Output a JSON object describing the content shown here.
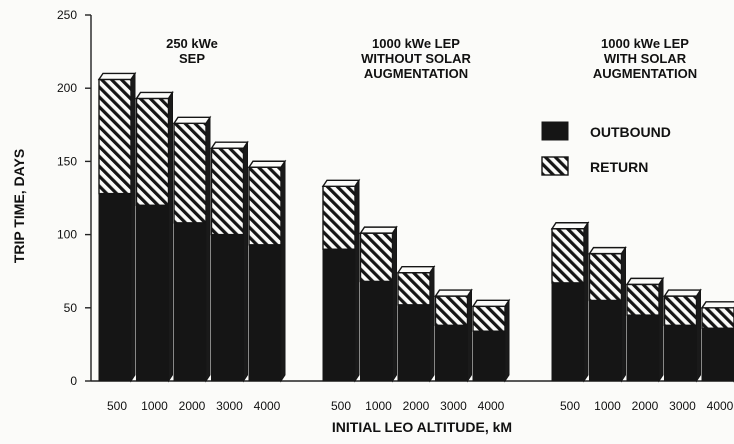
{
  "chart_data": {
    "type": "bar",
    "stacked": true,
    "three_d": true,
    "ylabel": "TRIP TIME, DAYS",
    "xlabel": "INITIAL LEO ALTITUDE, kM",
    "ylim": [
      0,
      250
    ],
    "yticks": [
      "0",
      "50",
      "100",
      "150",
      "200",
      "250"
    ],
    "categories": [
      "500",
      "1000",
      "2000",
      "3000",
      "4000"
    ],
    "legend": {
      "placement": "right",
      "outbound": "OUTBOUND",
      "return": "RETURN"
    },
    "groups": [
      {
        "title_lines": [
          "250 kWe",
          "SEP"
        ],
        "outbound": [
          128,
          120,
          108,
          100,
          93
        ],
        "total": [
          206,
          193,
          176,
          159,
          146
        ]
      },
      {
        "title_lines": [
          "1000 kWe LEP",
          "WITHOUT SOLAR",
          "AUGMENTATION"
        ],
        "outbound": [
          90,
          68,
          52,
          38,
          34
        ],
        "total": [
          133,
          101,
          74,
          58,
          51
        ]
      },
      {
        "title_lines": [
          "1000 kWe LEP",
          "WITH SOLAR",
          "AUGMENTATION"
        ],
        "outbound": [
          67,
          55,
          45,
          38,
          36
        ],
        "total": [
          104,
          87,
          66,
          58,
          50
        ]
      }
    ],
    "colors": {
      "outbound": "#151515",
      "return_hatch": "#151515",
      "background": "#fbfbf9"
    }
  }
}
